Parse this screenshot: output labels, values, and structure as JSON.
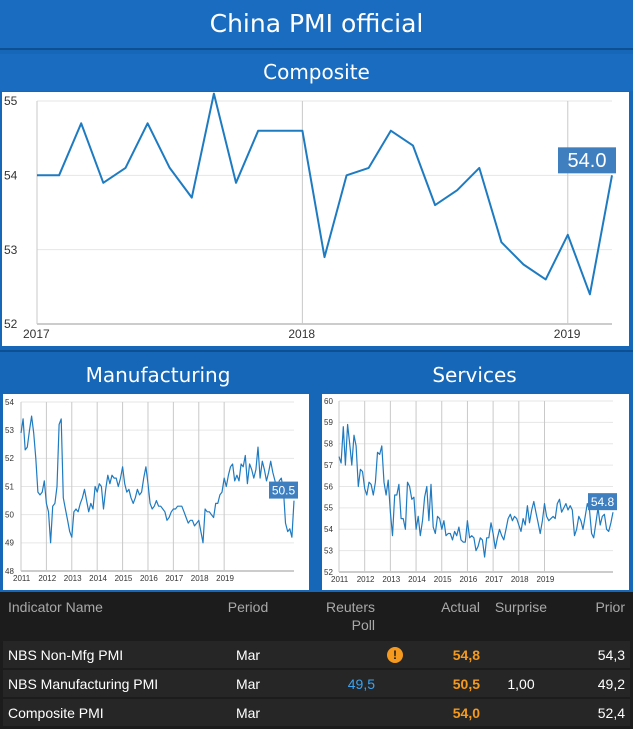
{
  "header": {
    "title": "China PMI official"
  },
  "chart_data": [
    {
      "type": "line",
      "title": "Composite",
      "ylim": [
        52,
        55
      ],
      "yticks": [
        52,
        53,
        54,
        55
      ],
      "xticks": [
        "2017",
        "2018",
        "2019"
      ],
      "last_label": "54.0",
      "series": [
        {
          "values": [
            54.0,
            54.0,
            54.7,
            53.9,
            54.1,
            54.7,
            54.1,
            53.7,
            55.1,
            53.9,
            54.6,
            54.6,
            54.6,
            52.9,
            54.0,
            54.1,
            54.6,
            54.4,
            53.6,
            53.8,
            54.1,
            53.1,
            52.8,
            52.6,
            53.2,
            52.4,
            54.0
          ]
        }
      ],
      "color": "#1f7bc1"
    },
    {
      "type": "line",
      "title": "Manufacturing",
      "ylim": [
        48,
        54
      ],
      "yticks": [
        48,
        49,
        50,
        51,
        52,
        53,
        54
      ],
      "xticks": [
        "2011",
        "2012",
        "2013",
        "2014",
        "2015",
        "2016",
        "2017",
        "2018",
        "2019"
      ],
      "last_label": "50.5",
      "series": [
        {
          "values": [
            52.9,
            53.4,
            52.3,
            52.4,
            53.0,
            53.5,
            52.9,
            52.0,
            50.8,
            50.7,
            50.8,
            51.2,
            50.4,
            50.1,
            49.0,
            50.3,
            50.4,
            51.0,
            53.2,
            53.4,
            50.6,
            50.2,
            49.8,
            49.4,
            49.2,
            50.1,
            50.2,
            50.1,
            50.4,
            50.6,
            50.9,
            50.5,
            50.1,
            50.4,
            50.2,
            51.0,
            50.8,
            51.1,
            51.0,
            50.2,
            50.9,
            51.4,
            51.1,
            51.4,
            51.3,
            51.3,
            51.0,
            51.3,
            51.7,
            51.1,
            50.8,
            50.9,
            50.6,
            50.4,
            50.6,
            50.9,
            50.7,
            50.8,
            51.3,
            51.7,
            51.1,
            50.4,
            50.2,
            50.3,
            50.5,
            50.3,
            50.3,
            50.2,
            50.1,
            49.8,
            49.9,
            50.1,
            50.2,
            50.2,
            50.3,
            50.3,
            50.3,
            50.1,
            49.9,
            49.7,
            49.8,
            49.8,
            49.6,
            49.7,
            49.8,
            49.4,
            49.0,
            50.2,
            50.1,
            50.1,
            50.0,
            49.9,
            50.4,
            50.4,
            50.7,
            50.8,
            51.3,
            51.0,
            51.4,
            51.7,
            51.8,
            51.2,
            51.4,
            51.2,
            51.8,
            51.7,
            52.1,
            51.1,
            51.8,
            51.6,
            51.3,
            51.6,
            52.4,
            51.3,
            51.9,
            51.6,
            51.2,
            51.5,
            51.9,
            51.5,
            51.2,
            50.8,
            51.2,
            51.3,
            50.9,
            49.7,
            49.4,
            49.5,
            49.2,
            50.5
          ]
        }
      ],
      "color": "#1f7bc1"
    },
    {
      "type": "line",
      "title": "Services",
      "ylim": [
        52,
        60
      ],
      "yticks": [
        52,
        53,
        54,
        55,
        56,
        57,
        58,
        59,
        60
      ],
      "xticks": [
        "2011",
        "2012",
        "2013",
        "2014",
        "2015",
        "2016",
        "2017",
        "2018",
        "2019"
      ],
      "last_label": "54.8",
      "series": [
        {
          "values": [
            57.4,
            57.1,
            58.8,
            57.0,
            58.9,
            58.0,
            57.0,
            58.4,
            57.9,
            56.0,
            56.8,
            56.7,
            55.9,
            55.6,
            56.2,
            56.1,
            55.6,
            56.2,
            57.6,
            57.5,
            57.9,
            56.2,
            55.6,
            56.3,
            54.8,
            53.7,
            55.6,
            55.6,
            56.1,
            54.5,
            54.5,
            54.0,
            56.2,
            56.0,
            55.4,
            55.5,
            54.0,
            54.6,
            53.7,
            54.4,
            55.5,
            56.0,
            54.4,
            56.1,
            54.1,
            53.8,
            54.6,
            54.5,
            54.0,
            54.4,
            53.7,
            53.8,
            53.8,
            53.5,
            53.9,
            53.7,
            54.1,
            53.5,
            53.4,
            53.4,
            54.4,
            53.6,
            53.7,
            53.6,
            53.0,
            53.2,
            53.6,
            53.5,
            52.7,
            53.6,
            53.6,
            54.3,
            53.8,
            53.1,
            53.6,
            54.0,
            53.7,
            53.5,
            54.0,
            54.5,
            54.7,
            54.4,
            54.6,
            54.5,
            54.2,
            53.9,
            54.5,
            54.2,
            55.1,
            54.3,
            54.9,
            55.3,
            54.8,
            54.3,
            53.8,
            54.4,
            55.2,
            54.6,
            54.4,
            54.5,
            54.6,
            54.5,
            55.2,
            55.4,
            54.8,
            55.0,
            55.2,
            54.9,
            55.1,
            54.9,
            53.7,
            54.0,
            54.6,
            54.4,
            54.0,
            54.6,
            55.2,
            54.9,
            53.8,
            53.6,
            54.3,
            55.0,
            54.2,
            54.6,
            54.7,
            54.0,
            53.9,
            54.3,
            54.8
          ]
        }
      ],
      "color": "#1f7bc1"
    }
  ],
  "table": {
    "headers": {
      "name": "Indicator Name",
      "period": "Period",
      "poll_line1": "Reuters",
      "poll_line2": "Poll",
      "actual": "Actual",
      "surprise": "Surprise",
      "prior": "Prior"
    },
    "rows": [
      {
        "name": "NBS Non-Mfg PMI",
        "period": "Mar",
        "poll": "",
        "actual": "54,8",
        "surprise": "",
        "prior": "54,3",
        "alert": "!"
      },
      {
        "name": "NBS Manufacturing PMI",
        "period": "Mar",
        "poll": "49,5",
        "actual": "50,5",
        "surprise": "1,00",
        "prior": "49,2"
      },
      {
        "name": "Composite PMI",
        "period": "Mar",
        "poll": "",
        "actual": "54,0",
        "surprise": "",
        "prior": "52,4"
      }
    ]
  }
}
